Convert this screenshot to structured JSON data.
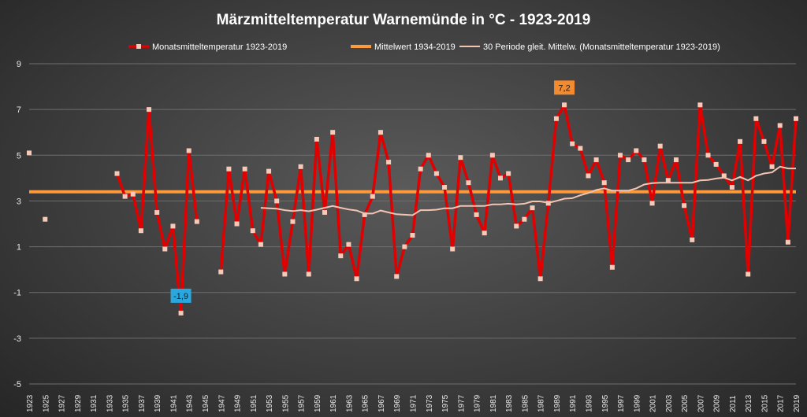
{
  "chart_data": {
    "type": "line",
    "title": "Märzmitteltemperatur Warnemünde in °C - 1923-2019",
    "xlabel": "",
    "ylabel": "",
    "xlim": [
      1923,
      2019
    ],
    "ylim": [
      -5,
      9
    ],
    "yticks": [
      9,
      7,
      5,
      3,
      1,
      -1,
      -3,
      -5
    ],
    "xticks": [
      "1923",
      "1925",
      "1927",
      "1929",
      "1931",
      "1933",
      "1935",
      "1937",
      "1939",
      "1941",
      "1943",
      "1945",
      "1947",
      "1949",
      "1951",
      "1953",
      "1955",
      "1957",
      "1959",
      "1961",
      "1963",
      "1965",
      "1967",
      "1969",
      "1971",
      "1973",
      "1975",
      "1977",
      "1979",
      "1981",
      "1983",
      "1985",
      "1987",
      "1989",
      "1991",
      "1993",
      "1995",
      "1997",
      "1999",
      "2001",
      "2003",
      "2005",
      "2007",
      "2009",
      "2011",
      "2013",
      "2015",
      "2017",
      "2019"
    ],
    "grid": "horizontal",
    "legend_position": "top",
    "series": [
      {
        "name": "Monatsmitteltemperatur 1923-2019",
        "color": "#e00000",
        "marker_color": "#f6c9b8",
        "points": [
          [
            1923,
            5.1
          ],
          [
            1925,
            2.2
          ],
          [
            1934,
            4.2
          ],
          [
            1935,
            3.2
          ],
          [
            1936,
            3.3
          ],
          [
            1937,
            1.7
          ],
          [
            1938,
            7.0
          ],
          [
            1939,
            2.5
          ],
          [
            1940,
            0.9
          ],
          [
            1941,
            1.9
          ],
          [
            1942,
            -1.9
          ],
          [
            1943,
            5.2
          ],
          [
            1944,
            2.1
          ],
          [
            1947,
            -0.1
          ],
          [
            1948,
            4.4
          ],
          [
            1949,
            2.0
          ],
          [
            1950,
            4.4
          ],
          [
            1951,
            1.7
          ],
          [
            1952,
            1.1
          ],
          [
            1953,
            4.3
          ],
          [
            1954,
            3.0
          ],
          [
            1955,
            -0.2
          ],
          [
            1956,
            2.1
          ],
          [
            1957,
            4.5
          ],
          [
            1958,
            -0.2
          ],
          [
            1959,
            5.7
          ],
          [
            1960,
            2.5
          ],
          [
            1961,
            6.0
          ],
          [
            1962,
            0.6
          ],
          [
            1963,
            1.1
          ],
          [
            1964,
            -0.4
          ],
          [
            1965,
            2.4
          ],
          [
            1966,
            3.2
          ],
          [
            1967,
            6.0
          ],
          [
            1968,
            4.7
          ],
          [
            1969,
            -0.3
          ],
          [
            1970,
            1.0
          ],
          [
            1971,
            1.5
          ],
          [
            1972,
            4.4
          ],
          [
            1973,
            5.0
          ],
          [
            1974,
            4.2
          ],
          [
            1975,
            3.6
          ],
          [
            1976,
            0.9
          ],
          [
            1977,
            4.9
          ],
          [
            1978,
            3.8
          ],
          [
            1979,
            2.4
          ],
          [
            1980,
            1.6
          ],
          [
            1981,
            5.0
          ],
          [
            1982,
            4.0
          ],
          [
            1983,
            4.2
          ],
          [
            1984,
            1.9
          ],
          [
            1985,
            2.2
          ],
          [
            1986,
            2.7
          ],
          [
            1987,
            -0.4
          ],
          [
            1988,
            2.9
          ],
          [
            1989,
            6.6
          ],
          [
            1990,
            7.2
          ],
          [
            1991,
            5.5
          ],
          [
            1992,
            5.3
          ],
          [
            1993,
            4.1
          ],
          [
            1994,
            4.8
          ],
          [
            1995,
            3.8
          ],
          [
            1996,
            0.1
          ],
          [
            1997,
            5.0
          ],
          [
            1998,
            4.8
          ],
          [
            1999,
            5.2
          ],
          [
            2000,
            4.8
          ],
          [
            2001,
            2.9
          ],
          [
            2002,
            5.4
          ],
          [
            2003,
            3.9
          ],
          [
            2004,
            4.8
          ],
          [
            2005,
            2.8
          ],
          [
            2006,
            1.3
          ],
          [
            2007,
            7.2
          ],
          [
            2008,
            5.0
          ],
          [
            2009,
            4.6
          ],
          [
            2010,
            4.1
          ],
          [
            2011,
            3.6
          ],
          [
            2012,
            5.6
          ],
          [
            2013,
            -0.2
          ],
          [
            2014,
            6.6
          ],
          [
            2015,
            5.6
          ],
          [
            2016,
            4.5
          ],
          [
            2017,
            6.3
          ],
          [
            2018,
            1.2
          ],
          [
            2019,
            6.6
          ]
        ]
      },
      {
        "name": "Mittelwert 1934-2019",
        "color": "#ff9a3c",
        "value": 3.4
      },
      {
        "name": "30 Periode gleit. Mittelw. (Monatsmitteltemperatur 1923-2019)",
        "color": "#f2c4b2",
        "points": [
          [
            1952,
            2.7
          ],
          [
            1953,
            2.68
          ],
          [
            1954,
            2.66
          ],
          [
            1955,
            2.6
          ],
          [
            1956,
            2.56
          ],
          [
            1957,
            2.6
          ],
          [
            1958,
            2.55
          ],
          [
            1959,
            2.62
          ],
          [
            1960,
            2.7
          ],
          [
            1961,
            2.78
          ],
          [
            1962,
            2.7
          ],
          [
            1963,
            2.63
          ],
          [
            1964,
            2.58
          ],
          [
            1965,
            2.45
          ],
          [
            1966,
            2.45
          ],
          [
            1967,
            2.58
          ],
          [
            1968,
            2.5
          ],
          [
            1969,
            2.42
          ],
          [
            1970,
            2.4
          ],
          [
            1971,
            2.38
          ],
          [
            1972,
            2.6
          ],
          [
            1973,
            2.6
          ],
          [
            1974,
            2.62
          ],
          [
            1975,
            2.68
          ],
          [
            1976,
            2.68
          ],
          [
            1977,
            2.78
          ],
          [
            1978,
            2.78
          ],
          [
            1979,
            2.78
          ],
          [
            1980,
            2.78
          ],
          [
            1981,
            2.85
          ],
          [
            1982,
            2.85
          ],
          [
            1983,
            2.88
          ],
          [
            1984,
            2.85
          ],
          [
            1985,
            2.88
          ],
          [
            1986,
            2.98
          ],
          [
            1987,
            2.98
          ],
          [
            1988,
            2.92
          ],
          [
            1989,
            3.0
          ],
          [
            1990,
            3.1
          ],
          [
            1991,
            3.12
          ],
          [
            1992,
            3.25
          ],
          [
            1993,
            3.35
          ],
          [
            1994,
            3.48
          ],
          [
            1995,
            3.55
          ],
          [
            1996,
            3.45
          ],
          [
            1997,
            3.45
          ],
          [
            1998,
            3.45
          ],
          [
            1999,
            3.55
          ],
          [
            2000,
            3.72
          ],
          [
            2001,
            3.78
          ],
          [
            2002,
            3.8
          ],
          [
            2003,
            3.8
          ],
          [
            2004,
            3.8
          ],
          [
            2005,
            3.8
          ],
          [
            2006,
            3.8
          ],
          [
            2007,
            3.9
          ],
          [
            2008,
            3.92
          ],
          [
            2009,
            3.98
          ],
          [
            2010,
            4.02
          ],
          [
            2011,
            3.9
          ],
          [
            2012,
            4.05
          ],
          [
            2013,
            3.9
          ],
          [
            2014,
            4.1
          ],
          [
            2015,
            4.2
          ],
          [
            2016,
            4.25
          ],
          [
            2017,
            4.5
          ],
          [
            2018,
            4.42
          ],
          [
            2019,
            4.42
          ]
        ]
      }
    ],
    "annotations": [
      {
        "label": "7,2",
        "x": 1990,
        "y": 7.2,
        "color": "#f28a30",
        "placement": "above"
      },
      {
        "label": "-1,9",
        "x": 1942,
        "y": -1.9,
        "color": "#29a8e0",
        "placement": "above"
      }
    ]
  }
}
